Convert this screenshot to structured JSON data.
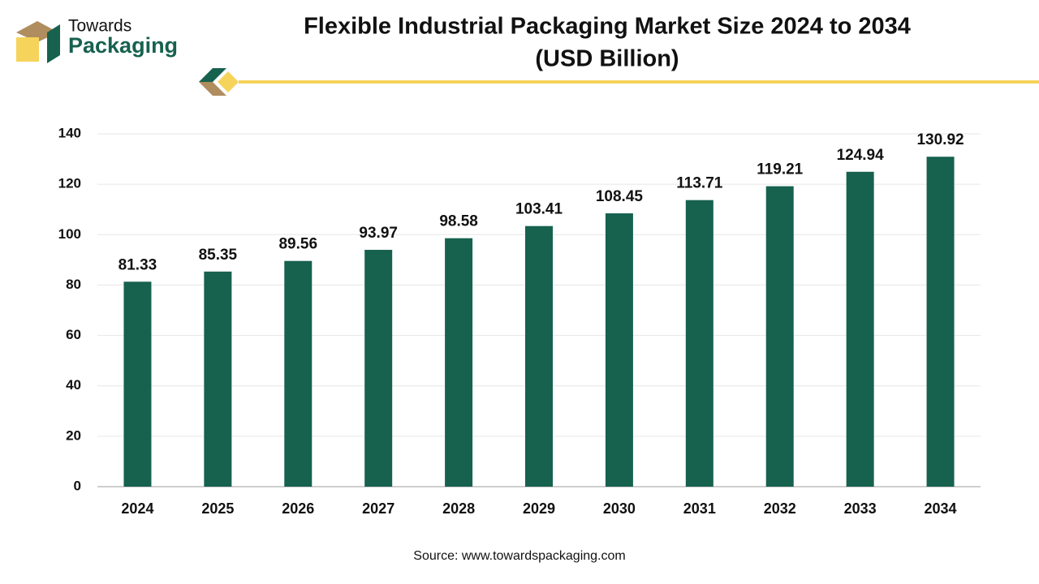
{
  "logo": {
    "line1": "Towards",
    "line2": "Packaging"
  },
  "chart_data": {
    "type": "bar",
    "title": "Flexible Industrial Packaging Market Size 2024 to 2034",
    "subtitle": "(USD Billion)",
    "categories": [
      "2024",
      "2025",
      "2026",
      "2027",
      "2028",
      "2029",
      "2030",
      "2031",
      "2032",
      "2033",
      "2034"
    ],
    "values": [
      81.33,
      85.35,
      89.56,
      93.97,
      98.58,
      103.41,
      108.45,
      113.71,
      119.21,
      124.94,
      130.92
    ],
    "color": "#17614f",
    "ylim": [
      0,
      140
    ],
    "yticks": [
      0,
      20,
      40,
      60,
      80,
      100,
      120,
      140
    ],
    "grid": true,
    "source": "Source: www.towardspackaging.com"
  }
}
